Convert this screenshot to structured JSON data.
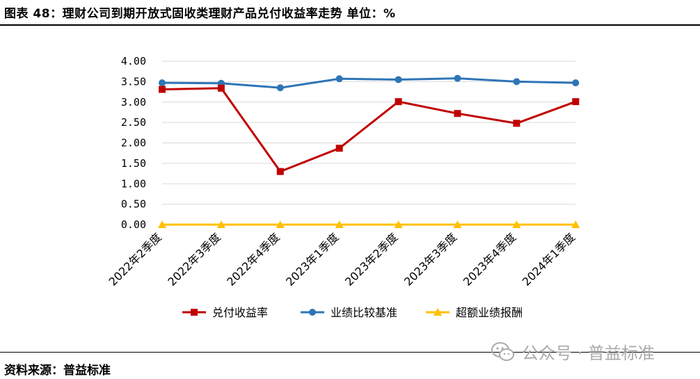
{
  "header": {
    "title": "图表 48：理财公司到期开放式固收类理财产品兑付收益率走势    单位：%"
  },
  "footer": {
    "source": "资料来源：普益标准"
  },
  "watermark": {
    "text": "公众号 · 普益标准",
    "icon": "wechat-icon"
  },
  "colors": {
    "series1": "#c00000",
    "series2": "#2e75b6",
    "series3": "#ffc000",
    "grid": "#d9d9d9"
  },
  "chart_data": {
    "type": "line",
    "title": "",
    "xlabel": "",
    "ylabel": "",
    "categories": [
      "2022年2季度",
      "2022年3季度",
      "2022年4季度",
      "2023年1季度",
      "2023年2季度",
      "2023年3季度",
      "2023年4季度",
      "2024年1季度"
    ],
    "ylim": [
      0,
      4
    ],
    "yticks": [
      "0.00",
      "0.50",
      "1.00",
      "1.50",
      "2.00",
      "2.50",
      "3.00",
      "3.50",
      "4.00"
    ],
    "grid": true,
    "legend": "bottom",
    "series": [
      {
        "name": "兑付收益率",
        "marker": "square",
        "color": "#c00000",
        "values": [
          3.31,
          3.34,
          1.3,
          1.87,
          3.01,
          2.72,
          2.48,
          3.01
        ]
      },
      {
        "name": "业绩比较基准",
        "marker": "circle",
        "color": "#2e75b6",
        "values": [
          3.47,
          3.46,
          3.35,
          3.57,
          3.55,
          3.58,
          3.5,
          3.47
        ]
      },
      {
        "name": "超额业绩报酬",
        "marker": "triangle",
        "color": "#ffc000",
        "values": [
          0.0,
          0.0,
          0.0,
          0.0,
          0.0,
          0.0,
          0.0,
          0.0
        ]
      }
    ]
  }
}
